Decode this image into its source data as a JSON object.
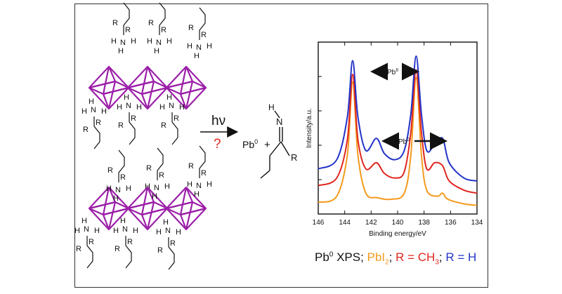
{
  "reaction": {
    "condition": "hν",
    "question": "?",
    "product_metal": "Pb",
    "product_metal_sup": "0",
    "plus": "+",
    "imine_N": "N",
    "imine_H": "H",
    "imine_R": "R"
  },
  "ammonium": {
    "N": "N",
    "H": "H",
    "R": "R"
  },
  "colors": {
    "octahedron": "#9b1fa8",
    "question": "#e0261f",
    "pbi2": "#f39a1d",
    "methyl": "#e0261f",
    "hydrogen": "#2233c8",
    "pb0": "#111111"
  },
  "caption": {
    "pb0_main": "Pb",
    "pb0_sup": "0",
    "pb0_rest": " XPS; ",
    "pbi2_main": "PbI",
    "pbi2_sub": "2",
    "sep1": "; ",
    "ch3_main": "R = CH",
    "ch3_sub": "3",
    "sep2": "; ",
    "h_label": "R = H"
  },
  "chart_data": {
    "type": "line",
    "xlabel": "Binding energy/eV",
    "ylabel": "Intensity/a.u.",
    "xlim": [
      146,
      134
    ],
    "x_ticks": [
      146,
      144,
      142,
      140,
      138,
      136,
      134
    ],
    "annotations": {
      "pb2": {
        "base": "Pb",
        "sup": "II"
      },
      "pb0": {
        "base": "Pb",
        "sup": "0"
      }
    },
    "series": [
      {
        "name": "PbI2",
        "color": "#f39a1d",
        "x": [
          146,
          144.6,
          143.8,
          143.4,
          143,
          142.4,
          141.5,
          140.5,
          139.5,
          139,
          138.6,
          138.2,
          137.8,
          137,
          136.6,
          136.2,
          135,
          134
        ],
        "y": [
          0.04,
          0.08,
          0.35,
          0.83,
          0.35,
          0.1,
          0.07,
          0.06,
          0.1,
          0.35,
          0.86,
          0.35,
          0.12,
          0.08,
          0.1,
          0.06,
          0.03,
          0.02
        ]
      },
      {
        "name": "R = CH3",
        "color": "#e0261f",
        "x": [
          146,
          144.6,
          143.8,
          143.4,
          143,
          142.4,
          141.6,
          141,
          140.2,
          139.5,
          139,
          138.6,
          138.2,
          137.8,
          137.2,
          136.6,
          136.1,
          135,
          134
        ],
        "y": [
          0.15,
          0.2,
          0.45,
          0.88,
          0.45,
          0.26,
          0.3,
          0.23,
          0.2,
          0.24,
          0.5,
          0.91,
          0.5,
          0.26,
          0.3,
          0.28,
          0.18,
          0.12,
          0.1
        ]
      },
      {
        "name": "R = H",
        "color": "#2233c8",
        "x": [
          146,
          144.6,
          143.8,
          143.4,
          143,
          142.4,
          141.6,
          141,
          140.2,
          139.5,
          139,
          138.6,
          138.2,
          137.8,
          137.2,
          136.6,
          136.1,
          135,
          134
        ],
        "y": [
          0.26,
          0.32,
          0.6,
          0.97,
          0.6,
          0.38,
          0.46,
          0.36,
          0.32,
          0.38,
          0.62,
          1.0,
          0.62,
          0.38,
          0.42,
          0.46,
          0.3,
          0.2,
          0.18
        ]
      }
    ]
  }
}
